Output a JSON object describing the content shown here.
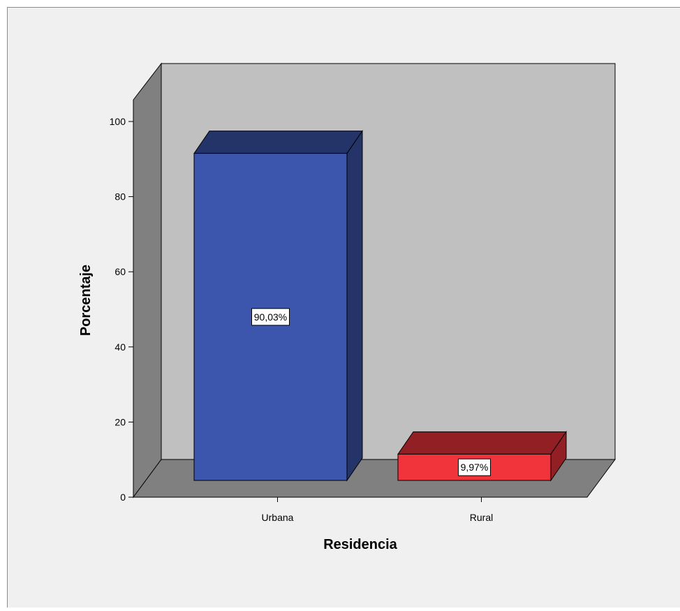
{
  "colors": {
    "frame_bg": "#f0f0f0",
    "back_wall": "#c0c0c0",
    "side_wall": "#808080",
    "floor": "#808080",
    "urbana": "#3c56ad",
    "rural": "#f1333b"
  },
  "chart_data": {
    "type": "bar",
    "style": "3d",
    "categories": [
      "Urbana",
      "Rural"
    ],
    "values": [
      90.03,
      9.97
    ],
    "data_labels": [
      "90,03%",
      "9,97%"
    ],
    "xlabel": "Residencia",
    "ylabel": "Porcentaje",
    "ylim": [
      0,
      100
    ],
    "yticks": [
      0,
      20,
      40,
      60,
      80,
      100
    ],
    "grid": false,
    "legend": "none"
  }
}
